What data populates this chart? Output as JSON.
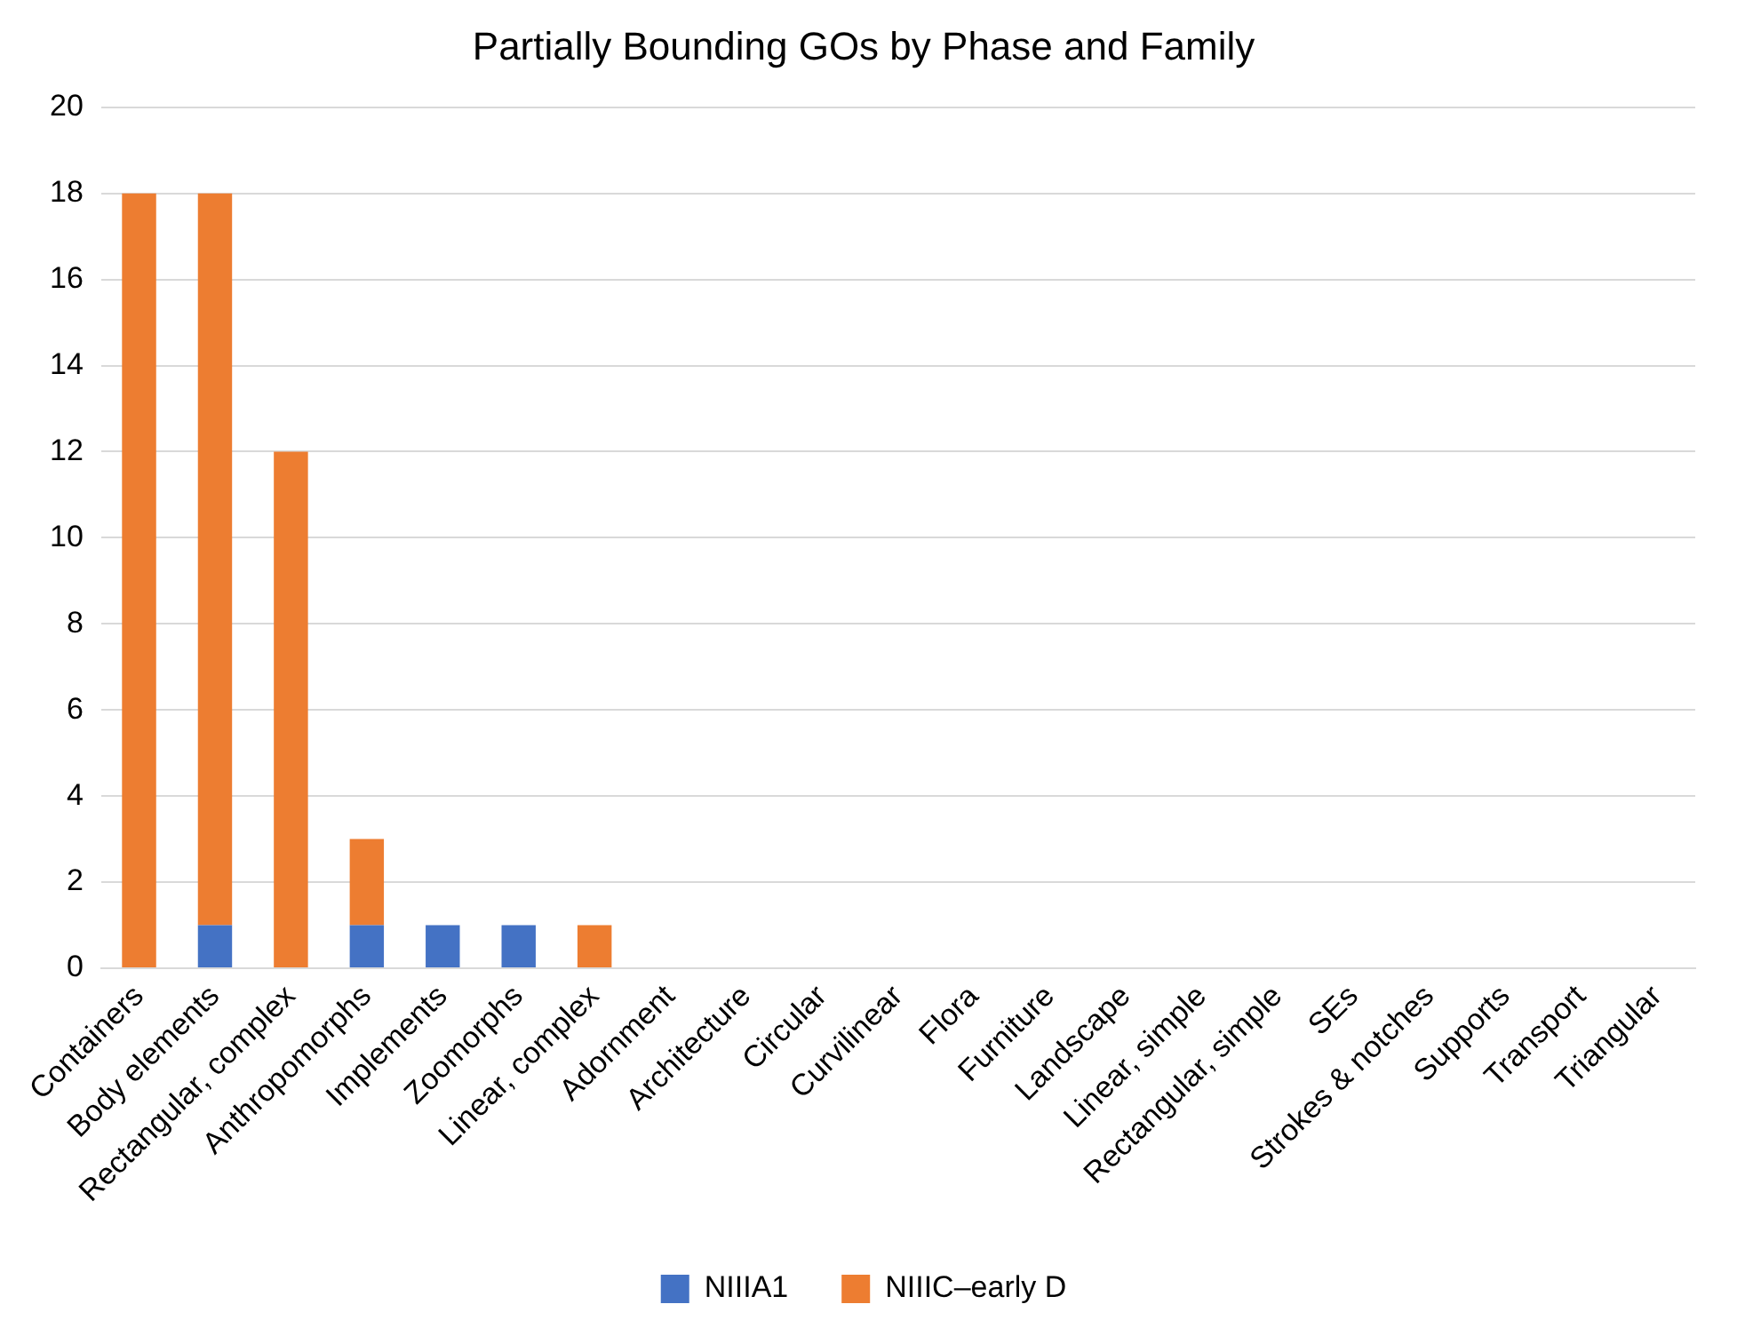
{
  "chart_data": {
    "type": "bar",
    "title": "Partially Bounding GOs by Phase and Family",
    "stacked": true,
    "categories": [
      "Containers",
      "Body elements",
      "Rectangular, complex",
      "Anthropomorphs",
      "Implements",
      "Zoomorphs",
      "Linear, complex",
      "Adornment",
      "Architecture",
      "Circular",
      "Curvilinear",
      "Flora",
      "Furniture",
      "Landscape",
      "Linear, simple",
      "Rectangular, simple",
      "SEs",
      "Strokes & notches",
      "Supports",
      "Transport",
      "Triangular"
    ],
    "series": [
      {
        "name": "NIIIA1",
        "color": "#4472c4",
        "values": [
          0,
          1,
          0,
          1,
          1,
          1,
          0,
          0,
          0,
          0,
          0,
          0,
          0,
          0,
          0,
          0,
          0,
          0,
          0,
          0,
          0
        ]
      },
      {
        "name": "NIIIC–early D",
        "color": "#ed7d31",
        "values": [
          18,
          17,
          12,
          2,
          0,
          0,
          1,
          0,
          0,
          0,
          0,
          0,
          0,
          0,
          0,
          0,
          0,
          0,
          0,
          0,
          0
        ]
      }
    ],
    "ylim": [
      0,
      20
    ],
    "yticks": [
      0,
      2,
      4,
      6,
      8,
      10,
      12,
      14,
      16,
      18,
      20
    ],
    "grid": "y",
    "legend": "bottom"
  }
}
